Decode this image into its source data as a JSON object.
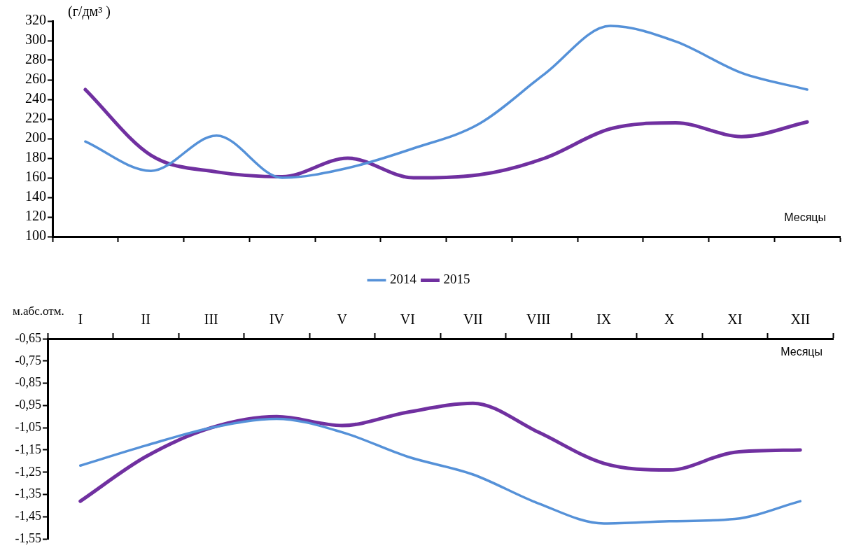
{
  "chart_data": [
    {
      "type": "line",
      "ylabel": "(г/дм³ )",
      "xlabel": "Месяцы",
      "categories": [
        null,
        null,
        null,
        null,
        null,
        null,
        null,
        null,
        null,
        null,
        null,
        null
      ],
      "tick_labels": "y",
      "legend": "bottom",
      "ylim": [
        100,
        320
      ],
      "yticks": [
        100,
        120,
        140,
        160,
        180,
        200,
        220,
        240,
        260,
        280,
        300,
        320
      ],
      "series": [
        {
          "name": "2014",
          "color": "#5591d8",
          "values": [
            197,
            167,
            203,
            160,
            170,
            190,
            215,
            266,
            315,
            299,
            267,
            250
          ]
        },
        {
          "name": "2015",
          "color": "#7030a0",
          "values": [
            250,
            183,
            166,
            161,
            180,
            160,
            163,
            180,
            210,
            216,
            202,
            217
          ]
        }
      ]
    },
    {
      "type": "line",
      "ylabel": "м.абс.отм.",
      "xlabel": "Месяцы",
      "categories": [
        "I",
        "II",
        "III",
        "IV",
        "V",
        "VI",
        "VII",
        "VIII",
        "IX",
        "X",
        "XI",
        "XII"
      ],
      "ylim": [
        -1.55,
        -0.65
      ],
      "yticks": [
        {
          "value": -0.65,
          "label": "-0,65"
        },
        {
          "value": -0.75,
          "label": "-0,75"
        },
        {
          "value": -0.85,
          "label": "-0,85"
        },
        {
          "value": -0.95,
          "label": "-0,95"
        },
        {
          "value": -1.05,
          "label": "-1,05"
        },
        {
          "value": -1.15,
          "label": "-1,15"
        },
        {
          "value": -1.25,
          "label": "-1,25"
        },
        {
          "value": -1.35,
          "label": "-1,35"
        },
        {
          "value": -1.45,
          "label": "-1,45"
        },
        {
          "value": -1.55,
          "label": "-1,55"
        }
      ],
      "series": [
        {
          "color": "#5591d8",
          "values": [
            -1.22,
            -1.13,
            -1.05,
            -1.01,
            -1.07,
            -1.18,
            -1.26,
            -1.39,
            -1.48,
            -1.47,
            -1.46,
            -1.38
          ]
        },
        {
          "color": "#7030a0",
          "values": [
            -1.38,
            -1.18,
            -1.05,
            -1.0,
            -1.04,
            -0.98,
            -0.94,
            -1.07,
            -1.21,
            -1.24,
            -1.16,
            -1.15
          ]
        }
      ]
    }
  ]
}
